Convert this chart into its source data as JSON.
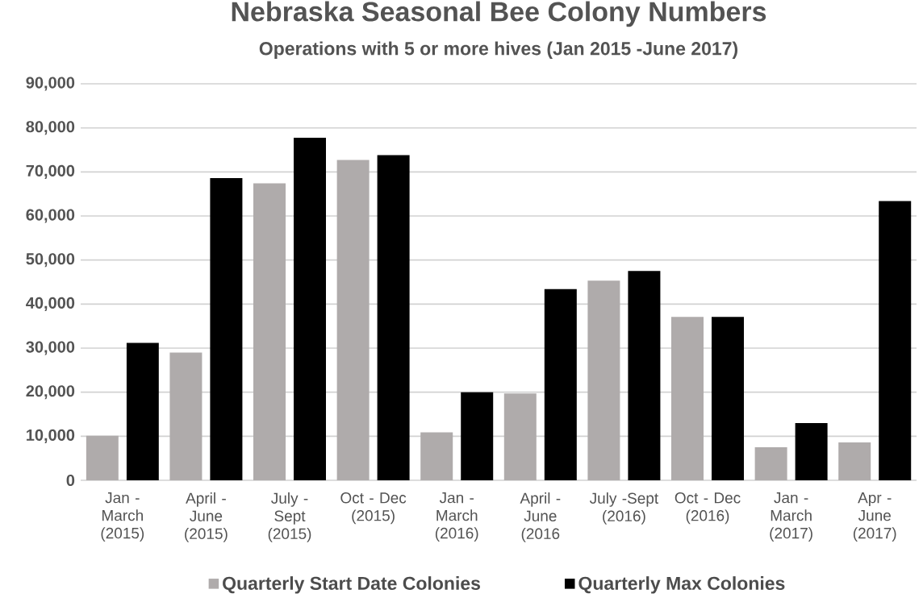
{
  "chart_data": {
    "type": "bar",
    "title": "Nebraska Seasonal Bee Colony Numbers",
    "subtitle": "Operations with 5 or more hives  (Jan 2015 -June 2017)",
    "categories": [
      "Jan - March (2015)",
      "April - June (2015)",
      "July - Sept (2015)",
      "Oct - Dec (2015)",
      "Jan - March (2016)",
      "April - June (2016",
      "July -Sept (2016)",
      "Oct - Dec (2016)",
      "Jan - March (2017)",
      "Apr - June (2017)"
    ],
    "series": [
      {
        "name": "Quarterly Start Date Colonies",
        "color": "#afabab",
        "values": [
          10100,
          29000,
          67400,
          72700,
          10900,
          19700,
          45300,
          37100,
          7500,
          8600
        ]
      },
      {
        "name": "Quarterly Max Colonies",
        "color": "#000000",
        "values": [
          31200,
          68600,
          77800,
          73800,
          20000,
          43400,
          47500,
          37100,
          13000,
          63400
        ]
      }
    ],
    "ylim": [
      0,
      90000
    ],
    "yticks": [
      {
        "value": 0,
        "label": "0"
      },
      {
        "value": 10000,
        "label": "10,000"
      },
      {
        "value": 20000,
        "label": "20,000"
      },
      {
        "value": 30000,
        "label": "30,000"
      },
      {
        "value": 40000,
        "label": "40,000"
      },
      {
        "value": 50000,
        "label": "50,000"
      },
      {
        "value": 60000,
        "label": "60,000"
      },
      {
        "value": 70000,
        "label": "70,000"
      },
      {
        "value": 80000,
        "label": "80,000"
      },
      {
        "value": 90000,
        "label": "90,000"
      }
    ],
    "grid": "y",
    "legend": "bottom"
  }
}
